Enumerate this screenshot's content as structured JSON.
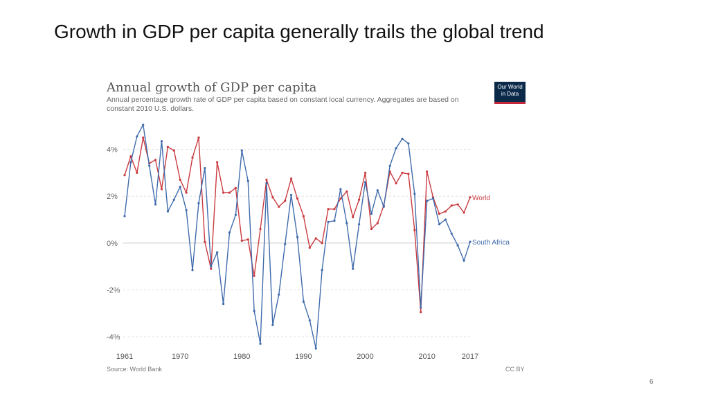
{
  "slide": {
    "title": "Growth in GDP per capita generally trails the global trend",
    "page_number": "6"
  },
  "logo": {
    "line1": "Our World",
    "line2": "in Data",
    "color": "#0b2a4a",
    "accent": "#c5283d"
  },
  "footer": {
    "source": "Source: World Bank",
    "license": "CC BY"
  },
  "chart_data": {
    "type": "line",
    "title": "Annual growth of GDP per capita",
    "subtitle": "Annual percentage growth rate of GDP per capita based on constant local currency. Aggregates are based on constant 2010 U.S. dollars.",
    "xlabel": "",
    "ylabel": "",
    "xlim": [
      1961,
      2017
    ],
    "ylim": [
      -4.5,
      5.2
    ],
    "y_ticks": [
      4,
      2,
      0,
      -2,
      -4
    ],
    "y_tick_labels": [
      "4%",
      "2%",
      "0%",
      "-2%",
      "-4%"
    ],
    "x_ticks": [
      1961,
      1970,
      1980,
      1990,
      2000,
      2010,
      2017
    ],
    "x_tick_labels": [
      "1961",
      "1970",
      "1980",
      "1990",
      "2000",
      "2010",
      "2017"
    ],
    "grid": true,
    "legend": "inline labels at right end of lines",
    "x": [
      1961,
      1962,
      1963,
      1964,
      1965,
      1966,
      1967,
      1968,
      1969,
      1970,
      1971,
      1972,
      1973,
      1974,
      1975,
      1976,
      1977,
      1978,
      1979,
      1980,
      1981,
      1982,
      1983,
      1984,
      1985,
      1986,
      1987,
      1988,
      1989,
      1990,
      1991,
      1992,
      1993,
      1994,
      1995,
      1996,
      1997,
      1998,
      1999,
      2000,
      2001,
      2002,
      2003,
      2004,
      2005,
      2006,
      2007,
      2008,
      2009,
      2010,
      2011,
      2012,
      2013,
      2014,
      2015,
      2016,
      2017
    ],
    "series": [
      {
        "name": "World",
        "color": "#c93a3f",
        "values": [
          2.9,
          3.7,
          3.0,
          4.5,
          3.4,
          3.55,
          2.3,
          4.1,
          3.95,
          2.7,
          2.15,
          3.65,
          4.5,
          0.05,
          -1.1,
          3.45,
          2.15,
          2.15,
          2.35,
          0.1,
          0.15,
          -1.4,
          0.6,
          2.7,
          1.95,
          1.55,
          1.8,
          2.75,
          1.9,
          1.15,
          -0.2,
          0.2,
          0.0,
          1.45,
          1.45,
          1.9,
          2.2,
          1.1,
          1.85,
          3.0,
          0.6,
          0.85,
          1.6,
          3.05,
          2.55,
          3.0,
          2.95,
          0.55,
          -2.95,
          3.05,
          1.95,
          1.25,
          1.35,
          1.6,
          1.65,
          1.3,
          1.95
        ]
      },
      {
        "name": "South Africa",
        "color": "#3f6bab",
        "values": [
          1.15,
          3.45,
          4.55,
          5.05,
          3.3,
          1.65,
          4.35,
          1.35,
          1.85,
          2.4,
          1.4,
          -1.15,
          1.7,
          3.2,
          -1.0,
          -0.4,
          -2.6,
          0.45,
          1.2,
          3.95,
          2.65,
          -2.9,
          -4.3,
          2.55,
          -3.5,
          -2.2,
          -0.05,
          2.05,
          0.25,
          -2.5,
          -3.3,
          -4.5,
          -1.15,
          0.9,
          0.95,
          2.3,
          0.85,
          -1.1,
          0.8,
          2.6,
          1.25,
          2.25,
          1.55,
          3.3,
          4.05,
          4.45,
          4.25,
          2.1,
          -2.75,
          1.8,
          1.9,
          0.8,
          1.0,
          0.4,
          -0.1,
          -0.75,
          0.05
        ]
      }
    ]
  }
}
